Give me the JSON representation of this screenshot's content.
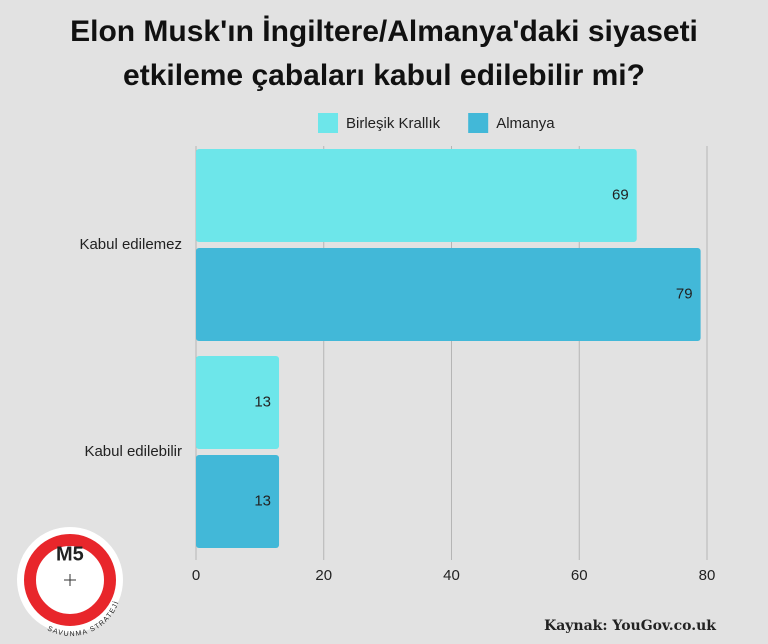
{
  "chart_data": {
    "type": "hbar",
    "title": "Elon Musk'ın İngiltere/Almanya'daki siyaseti etkileme çabaları kabul edilebilir mi?",
    "categories": [
      "Kabul edilemez",
      "Kabul edilebilir"
    ],
    "series": [
      {
        "name": "Birleşik Krallık",
        "color": "#6de6ea",
        "values": [
          69,
          13
        ]
      },
      {
        "name": "Almanya",
        "color": "#42b8d8",
        "values": [
          79,
          13
        ]
      }
    ],
    "xlim": [
      0,
      80
    ],
    "xticks": [
      0,
      20,
      40,
      60,
      80
    ],
    "grid": true,
    "legend": "top",
    "source": "Kaynak: YouGov.co.uk",
    "logo": {
      "title": "M5",
      "subtitle": "SAVUNMA STRATEJİ"
    }
  }
}
